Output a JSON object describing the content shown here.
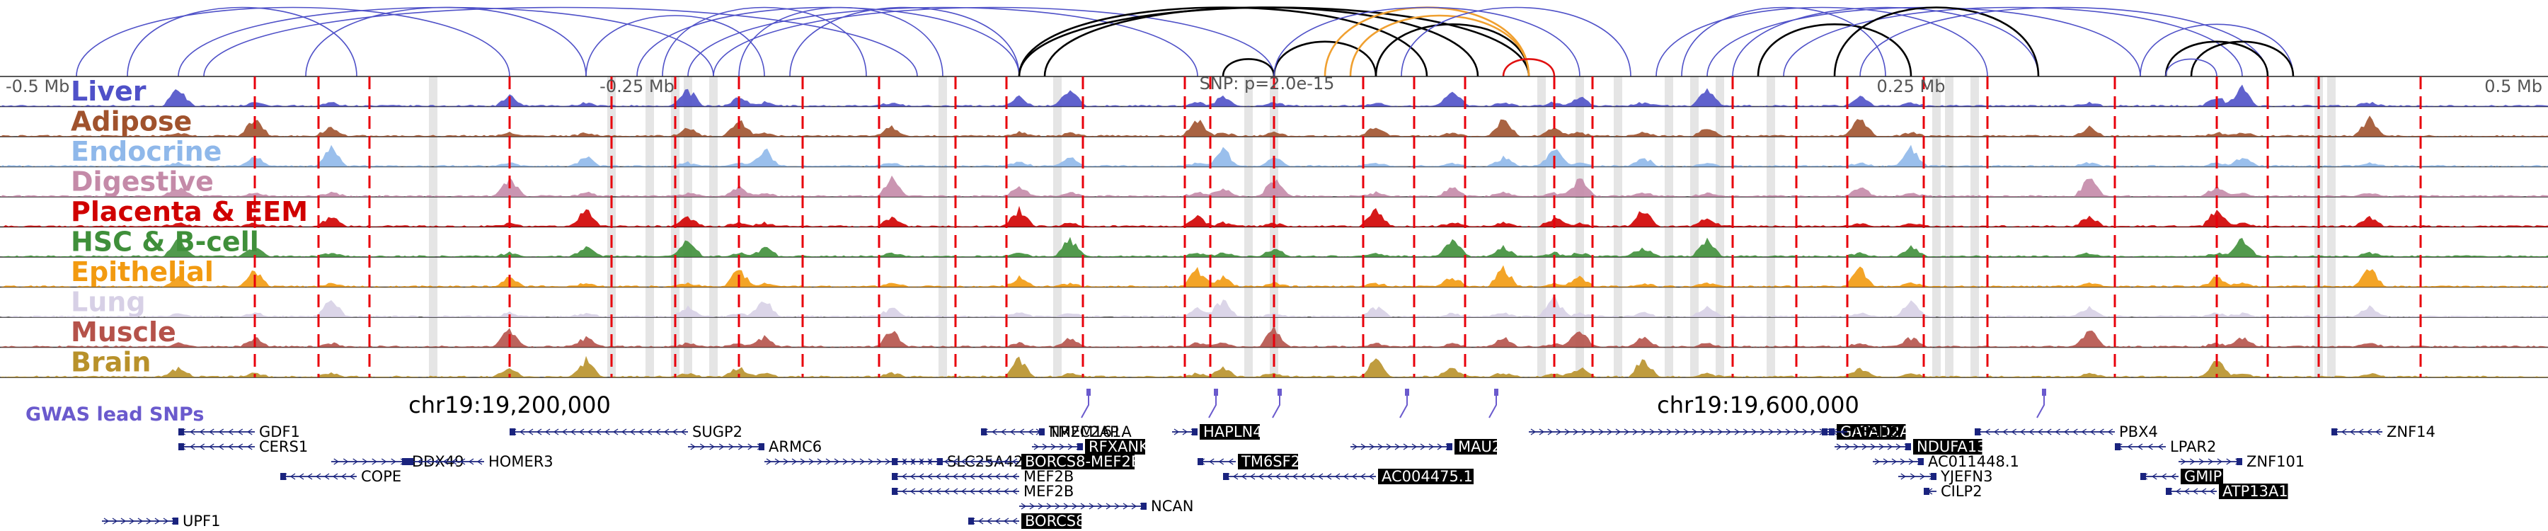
{
  "colors": {
    "gwas": "#6a5acd",
    "loop_blue": "#4f51c8",
    "loop_black": "#000000",
    "loop_orange": "#f0a030",
    "loop_red": "#e01010",
    "snp_line": "#e8000b",
    "highlight": "#d0d0d0",
    "gene": "#1a237e"
  },
  "axis": {
    "left_label": "-0.5 Mb",
    "center_left_label": "-0.25 Mb",
    "snp_label": "SNP: p=2.0e-15",
    "center_right_label": "0.25 Mb",
    "right_label": "0.5 Mb",
    "coord_left": "chr19:19,200,000",
    "coord_right": "chr19:19,600,000"
  },
  "gwas_label": "GWAS lead SNPs",
  "chart_data": {
    "type": "area",
    "title": "",
    "x_range": [
      -0.5,
      0.5
    ],
    "x_unit": "Mb",
    "tracks": [
      {
        "name": "Liver",
        "color": "#4f51c8"
      },
      {
        "name": "Adipose",
        "color": "#a0522d"
      },
      {
        "name": "Endocrine",
        "color": "#8fb8ea"
      },
      {
        "name": "Digestive",
        "color": "#c48aa8"
      },
      {
        "name": "Placenta & EEM",
        "color": "#d00000"
      },
      {
        "name": "HSC & B-cell",
        "color": "#3f8f3a"
      },
      {
        "name": "Epithelial",
        "color": "#f29a10"
      },
      {
        "name": "Lung",
        "color": "#d7d0e6"
      },
      {
        "name": "Muscle",
        "color": "#b5524a"
      },
      {
        "name": "Brain",
        "color": "#b8912a"
      }
    ],
    "peaks_mb": [
      -0.43,
      -0.4,
      -0.37,
      -0.3,
      -0.27,
      -0.23,
      -0.21,
      -0.2,
      -0.15,
      -0.1,
      -0.08,
      -0.03,
      -0.02,
      0.0,
      0.04,
      0.07,
      0.09,
      0.11,
      0.12,
      0.145,
      0.17,
      0.23,
      0.25,
      0.32,
      0.37,
      0.38,
      0.43
    ],
    "snp_positions_mb": [
      -0.4,
      -0.375,
      -0.355,
      -0.3,
      -0.26,
      -0.235,
      -0.21,
      -0.185,
      -0.155,
      -0.125,
      -0.105,
      -0.075,
      -0.035,
      -0.025,
      0.0,
      0.035,
      0.055,
      0.075,
      0.11,
      0.125,
      0.18,
      0.205,
      0.225,
      0.255,
      0.28,
      0.33,
      0.37,
      0.39,
      0.41,
      0.45
    ],
    "highlight_positions_mb": [
      -0.33,
      -0.26,
      -0.245,
      -0.235,
      -0.23,
      -0.22,
      -0.13,
      -0.085,
      -0.01,
      0.0,
      0.105,
      0.12,
      0.135,
      0.155,
      0.165,
      0.175,
      0.195,
      0.26,
      0.265,
      0.275,
      0.41,
      0.415
    ],
    "gwas_snps_mb": [
      -0.07,
      -0.02,
      0.005,
      0.055,
      0.09,
      0.305
    ],
    "loops": [
      {
        "from": -0.47,
        "to": -0.3,
        "color": "blue"
      },
      {
        "from": -0.45,
        "to": -0.36,
        "color": "blue"
      },
      {
        "from": -0.43,
        "to": -0.22,
        "color": "blue"
      },
      {
        "from": -0.42,
        "to": -0.14,
        "color": "blue"
      },
      {
        "from": -0.38,
        "to": -0.27,
        "color": "blue"
      },
      {
        "from": -0.27,
        "to": -0.2,
        "color": "blue"
      },
      {
        "from": -0.25,
        "to": -0.1,
        "color": "blue"
      },
      {
        "from": -0.24,
        "to": -0.16,
        "color": "blue"
      },
      {
        "from": -0.23,
        "to": -0.03,
        "color": "blue"
      },
      {
        "from": -0.22,
        "to": 0.0,
        "color": "blue"
      },
      {
        "from": -0.21,
        "to": -0.13,
        "color": "blue"
      },
      {
        "from": -0.19,
        "to": -0.1,
        "color": "blue"
      },
      {
        "from": -0.1,
        "to": 0.06,
        "color": "black"
      },
      {
        "from": -0.1,
        "to": 0.1,
        "color": "black"
      },
      {
        "from": -0.09,
        "to": 0.08,
        "color": "black"
      },
      {
        "from": -0.02,
        "to": 0.0,
        "color": "black"
      },
      {
        "from": 0.0,
        "to": 0.04,
        "color": "black"
      },
      {
        "from": 0.04,
        "to": 0.1,
        "color": "black"
      },
      {
        "from": 0.02,
        "to": 0.1,
        "color": "orange"
      },
      {
        "from": 0.03,
        "to": 0.1,
        "color": "orange"
      },
      {
        "from": 0.09,
        "to": 0.11,
        "color": "red"
      },
      {
        "from": 0.0,
        "to": 0.12,
        "color": "blue"
      },
      {
        "from": 0.05,
        "to": 0.14,
        "color": "blue"
      },
      {
        "from": 0.15,
        "to": 0.28,
        "color": "blue"
      },
      {
        "from": 0.16,
        "to": 0.24,
        "color": "blue"
      },
      {
        "from": 0.17,
        "to": 0.34,
        "color": "blue"
      },
      {
        "from": 0.18,
        "to": 0.3,
        "color": "blue"
      },
      {
        "from": 0.19,
        "to": 0.25,
        "color": "black"
      },
      {
        "from": 0.2,
        "to": 0.38,
        "color": "blue"
      },
      {
        "from": 0.22,
        "to": 0.3,
        "color": "black"
      },
      {
        "from": 0.23,
        "to": 0.39,
        "color": "blue"
      },
      {
        "from": 0.34,
        "to": 0.4,
        "color": "blue"
      },
      {
        "from": 0.35,
        "to": 0.39,
        "color": "black"
      },
      {
        "from": 0.36,
        "to": 0.4,
        "color": "black"
      },
      {
        "from": 0.35,
        "to": 0.37,
        "color": "blue"
      }
    ],
    "genes": [
      {
        "name": "GDF1",
        "start": -0.43,
        "end": -0.4,
        "strand": "-",
        "row": 0,
        "boxed": false
      },
      {
        "name": "CERS1",
        "start": -0.43,
        "end": -0.4,
        "strand": "-",
        "row": 1,
        "boxed": false
      },
      {
        "name": "DDX49",
        "start": -0.37,
        "end": -0.34,
        "strand": "+",
        "row": 2,
        "boxed": false
      },
      {
        "name": "HOMER3",
        "start": -0.34,
        "end": -0.31,
        "strand": "-",
        "row": 2,
        "boxed": false
      },
      {
        "name": "COPE",
        "start": -0.39,
        "end": -0.36,
        "strand": "-",
        "row": 3,
        "boxed": false
      },
      {
        "name": "UPF1",
        "start": -0.46,
        "end": -0.43,
        "strand": "+",
        "row": 6,
        "boxed": false
      },
      {
        "name": "SUGP2",
        "start": -0.3,
        "end": -0.23,
        "strand": "-",
        "row": 0,
        "boxed": false
      },
      {
        "name": "ARMC6",
        "start": -0.23,
        "end": -0.2,
        "strand": "+",
        "row": 1,
        "boxed": false
      },
      {
        "name": "SLC25A42",
        "start": -0.2,
        "end": -0.13,
        "strand": "+",
        "row": 2,
        "boxed": false
      },
      {
        "name": "TMEM161A",
        "start": -0.115,
        "end": -0.09,
        "strand": "-",
        "row": 0,
        "boxed": false
      },
      {
        "name": "RFXANK",
        "start": -0.095,
        "end": -0.075,
        "strand": "+",
        "row": 1,
        "boxed": true
      },
      {
        "name": "BORCS8-MEF2B",
        "start": -0.15,
        "end": -0.1,
        "strand": "-",
        "row": 2,
        "boxed": true
      },
      {
        "name": "MEF2B",
        "start": -0.15,
        "end": -0.1,
        "strand": "-",
        "row": 3,
        "boxed": false
      },
      {
        "name": "MEF2B",
        "start": -0.15,
        "end": -0.1,
        "strand": "-",
        "row": 4,
        "boxed": false
      },
      {
        "name": "NCAN",
        "start": -0.1,
        "end": -0.05,
        "strand": "+",
        "row": 5,
        "boxed": false
      },
      {
        "name": "BORCS8",
        "start": -0.12,
        "end": -0.1,
        "strand": "-",
        "row": 6,
        "boxed": true
      },
      {
        "name": "NR2C2AP",
        "start": -0.095,
        "end": -0.09,
        "strand": "+",
        "row": 0,
        "boxed": false
      },
      {
        "name": "HAPLN4",
        "start": -0.04,
        "end": -0.03,
        "strand": "+",
        "row": 0,
        "boxed": true
      },
      {
        "name": "TM6SF2",
        "start": -0.03,
        "end": -0.015,
        "strand": "-",
        "row": 2,
        "boxed": true
      },
      {
        "name": "MAU2",
        "start": 0.03,
        "end": 0.07,
        "strand": "+",
        "row": 1,
        "boxed": true
      },
      {
        "name": "AC004475.1",
        "start": -0.02,
        "end": 0.04,
        "strand": "-",
        "row": 3,
        "boxed": true
      },
      {
        "name": "GATAD2A",
        "start": 0.1,
        "end": 0.22,
        "strand": "+",
        "row": 0,
        "boxed": true
      },
      {
        "name": "NDUFA13",
        "start": 0.22,
        "end": 0.25,
        "strand": "+",
        "row": 1,
        "boxed": true
      },
      {
        "name": "AC011448.1",
        "start": 0.235,
        "end": 0.255,
        "strand": "+",
        "row": 2,
        "boxed": false
      },
      {
        "name": "YJEFN3",
        "start": 0.245,
        "end": 0.26,
        "strand": "+",
        "row": 3,
        "boxed": false
      },
      {
        "name": "CILP2",
        "start": 0.255,
        "end": 0.26,
        "strand": "-",
        "row": 4,
        "boxed": false
      },
      {
        "name": "TSSK6",
        "start": 0.215,
        "end": 0.225,
        "strand": "-",
        "row": 0,
        "boxed": false
      },
      {
        "name": "PBX4",
        "start": 0.275,
        "end": 0.33,
        "strand": "-",
        "row": 0,
        "boxed": false
      },
      {
        "name": "LPAR2",
        "start": 0.33,
        "end": 0.35,
        "strand": "-",
        "row": 1,
        "boxed": false
      },
      {
        "name": "ZNF101",
        "start": 0.355,
        "end": 0.38,
        "strand": "+",
        "row": 2,
        "boxed": false
      },
      {
        "name": "GMIP",
        "start": 0.34,
        "end": 0.355,
        "strand": "-",
        "row": 3,
        "boxed": true
      },
      {
        "name": "ATP13A1",
        "start": 0.35,
        "end": 0.37,
        "strand": "-",
        "row": 4,
        "boxed": true
      },
      {
        "name": "ZNF14",
        "start": 0.415,
        "end": 0.435,
        "strand": "-",
        "row": 0,
        "boxed": false
      }
    ]
  }
}
